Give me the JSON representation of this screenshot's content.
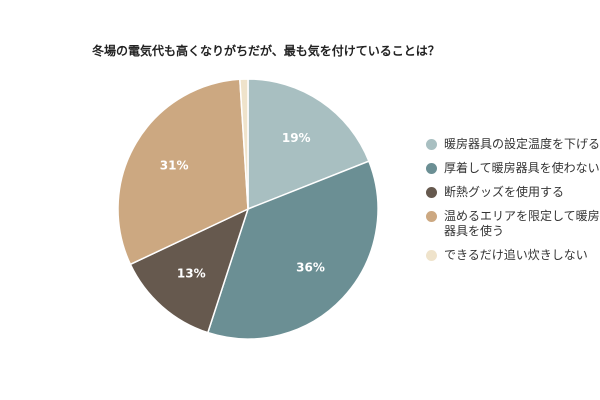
{
  "chart_data": {
    "type": "pie",
    "title": "冬場の電気代も高くなりがちだが、最も気を付けていることは？",
    "categories": [
      "暖房器具の設定温度を下げる",
      "厚着して暖房器具を使わない",
      "断熱グッズを使用する",
      "温めるエリアを限定して暖房器具を使う",
      "できるだけ追い炊きしない"
    ],
    "values": [
      19,
      36,
      13,
      31,
      1
    ],
    "data_labels": [
      "19%",
      "36%",
      "13%",
      "31%",
      ""
    ],
    "colors": [
      "#a8bfc1",
      "#6b8f94",
      "#66594e",
      "#cca881",
      "#efe3cb"
    ],
    "legend": "right"
  }
}
